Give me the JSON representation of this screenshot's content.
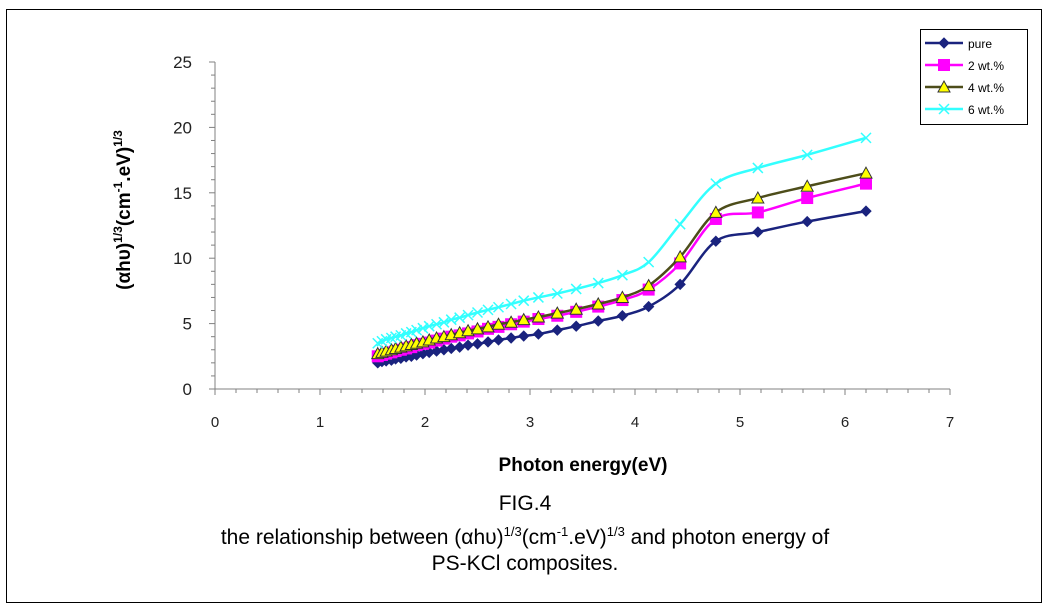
{
  "chart_data": {
    "type": "line",
    "title": "",
    "xlabel": "Photon energy(eV)",
    "ylabel": "(αhυ)^1/3(cm^-1.eV)^1/3",
    "ylabel_parts": {
      "a": "(αhυ)",
      "b": "1/3",
      "c": "(cm",
      "d": "-1",
      "e": ".eV)",
      "f": "1/3"
    },
    "xlim": [
      0,
      7
    ],
    "ylim": [
      0,
      25
    ],
    "x_ticks": [
      "0",
      "1",
      "2",
      "3",
      "4",
      "5",
      "6",
      "7"
    ],
    "y_ticks": [
      "0",
      "5",
      "10",
      "15",
      "20",
      "25"
    ],
    "grid": false,
    "legend_position": "top-right",
    "x": [
      1.55,
      1.59,
      1.63,
      1.68,
      1.72,
      1.77,
      1.82,
      1.87,
      1.92,
      1.98,
      2.04,
      2.11,
      2.18,
      2.25,
      2.33,
      2.41,
      2.5,
      2.6,
      2.7,
      2.82,
      2.94,
      3.08,
      3.26,
      3.44,
      3.65,
      3.88,
      4.13,
      4.43,
      4.77,
      5.17,
      5.64,
      6.2
    ],
    "series": [
      {
        "name": "pure",
        "color": "#1a237e",
        "marker": "diamond",
        "values": [
          2.0,
          2.1,
          2.15,
          2.2,
          2.3,
          2.35,
          2.45,
          2.5,
          2.6,
          2.7,
          2.8,
          2.9,
          3.0,
          3.1,
          3.2,
          3.35,
          3.45,
          3.6,
          3.75,
          3.9,
          4.05,
          4.2,
          4.5,
          4.8,
          5.2,
          5.6,
          6.3,
          8.0,
          11.3,
          12.0,
          12.8,
          13.6
        ]
      },
      {
        "name": "2 wt.%",
        "color": "#ff00ff",
        "marker": "square",
        "values": [
          2.5,
          2.6,
          2.7,
          2.8,
          2.9,
          3.0,
          3.1,
          3.2,
          3.35,
          3.45,
          3.55,
          3.7,
          3.85,
          4.0,
          4.1,
          4.25,
          4.4,
          4.6,
          4.75,
          4.95,
          5.15,
          5.35,
          5.6,
          5.9,
          6.3,
          6.8,
          7.6,
          9.6,
          13.0,
          13.5,
          14.6,
          15.7
        ]
      },
      {
        "name": "4 wt.%",
        "color": "#4d4d1a",
        "marker": "triangle",
        "values": [
          2.7,
          2.8,
          2.9,
          3.0,
          3.1,
          3.2,
          3.3,
          3.4,
          3.5,
          3.6,
          3.75,
          3.9,
          4.0,
          4.15,
          4.3,
          4.45,
          4.6,
          4.75,
          4.95,
          5.1,
          5.3,
          5.5,
          5.8,
          6.1,
          6.5,
          7.0,
          7.9,
          10.1,
          13.5,
          14.6,
          15.5,
          16.5
        ]
      },
      {
        "name": "6 wt.%",
        "color": "#33ffff",
        "marker": "x",
        "values": [
          3.5,
          3.65,
          3.8,
          3.9,
          4.0,
          4.1,
          4.25,
          4.35,
          4.5,
          4.65,
          4.8,
          4.95,
          5.1,
          5.3,
          5.45,
          5.65,
          5.85,
          6.05,
          6.25,
          6.5,
          6.75,
          7.0,
          7.3,
          7.65,
          8.1,
          8.7,
          9.7,
          12.6,
          15.7,
          16.9,
          17.9,
          19.2
        ]
      }
    ]
  },
  "caption": {
    "fig_label": "FIG.4",
    "line1_a": "the relationship between (αhυ)",
    "line1_b": "1/3",
    "line1_c": "(cm",
    "line1_d": "-1",
    "line1_e": ".eV)",
    "line1_f": "1/3",
    "line1_g": " and photon energy of",
    "line2": "PS-KCl composites."
  }
}
